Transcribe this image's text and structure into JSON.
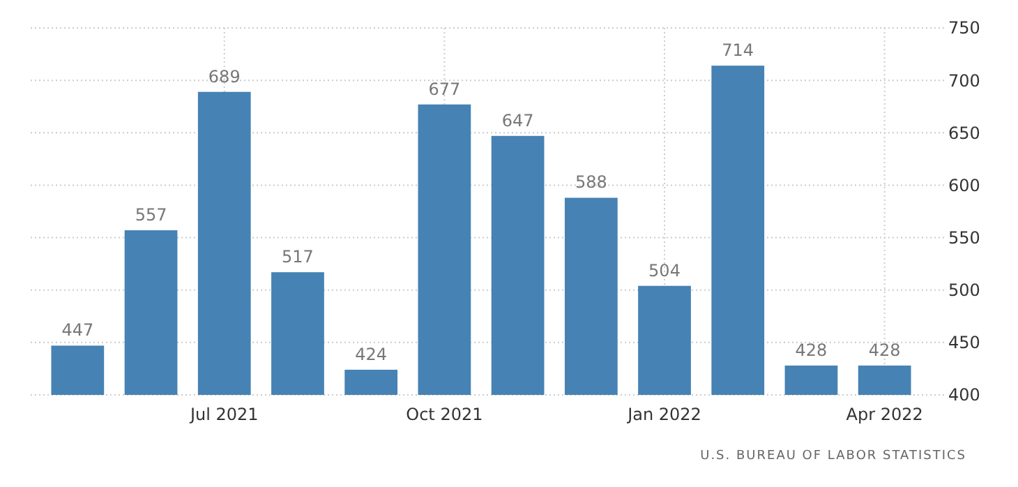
{
  "chart_data": {
    "type": "bar",
    "categories": [
      null,
      null,
      "Jul 2021",
      null,
      null,
      "Oct 2021",
      null,
      null,
      "Jan 2022",
      null,
      null,
      "Apr 2022"
    ],
    "values": [
      447,
      557,
      689,
      517,
      424,
      677,
      647,
      588,
      504,
      714,
      428,
      428
    ],
    "color": "#4682b4",
    "ylim": [
      400,
      750
    ],
    "yticks": [
      400,
      450,
      500,
      550,
      600,
      650,
      700,
      750
    ],
    "grid": true,
    "data_labels": true,
    "annotations": [
      "U.S. BUREAU OF LABOR STATISTICS"
    ]
  }
}
